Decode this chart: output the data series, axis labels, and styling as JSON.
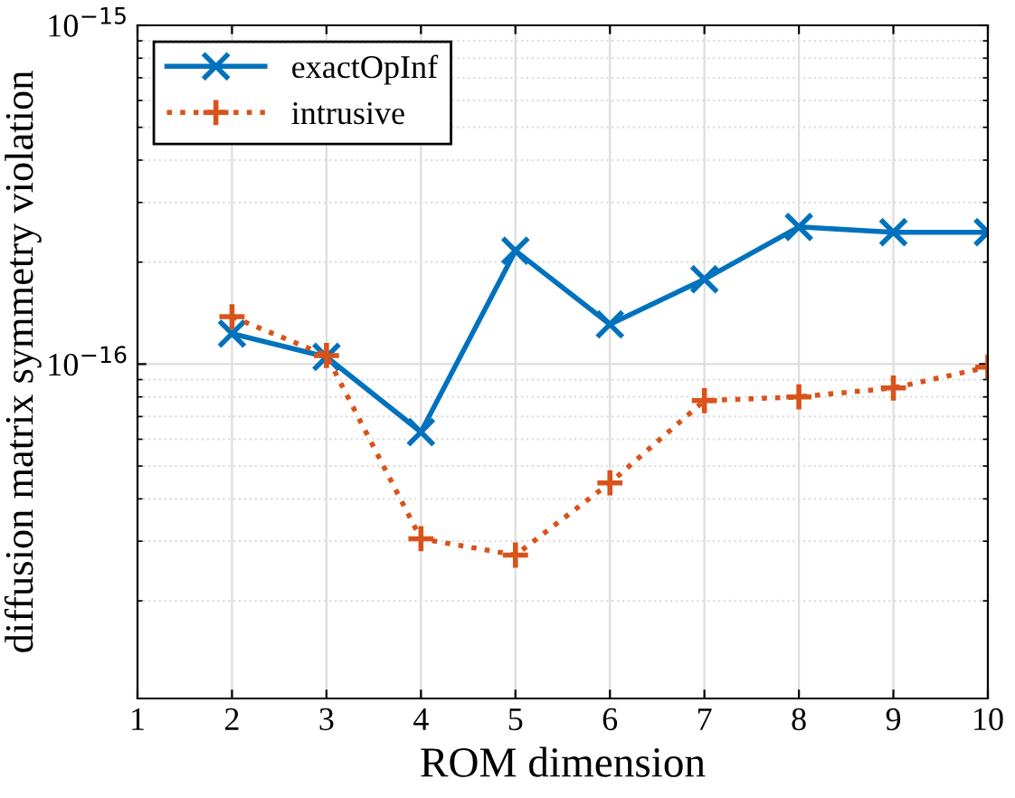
{
  "chart_data": {
    "type": "line",
    "xlabel": "ROM dimension",
    "ylabel": "diffusion matrix symmetry violation",
    "x": [
      2,
      3,
      4,
      5,
      6,
      7,
      8,
      9,
      10
    ],
    "series": [
      {
        "name": "exactOpInf",
        "color": "#0072bd",
        "marker": "cross",
        "line_style": "solid",
        "values": [
          1.23e-16,
          1.05e-16,
          6.3e-17,
          2.16e-16,
          1.31e-16,
          1.78e-16,
          2.54e-16,
          2.45e-16,
          2.45e-16
        ]
      },
      {
        "name": "intrusive",
        "color": "#d95319",
        "marker": "plus",
        "line_style": "dotted",
        "values": [
          1.38e-16,
          1.06e-16,
          3.05e-17,
          2.73e-17,
          4.46e-17,
          7.8e-17,
          8e-17,
          8.5e-17,
          9.8e-17
        ]
      }
    ],
    "xlim": [
      1,
      10
    ],
    "xticks": [
      1,
      2,
      3,
      4,
      5,
      6,
      7,
      8,
      9,
      10
    ],
    "ylim": [
      1.03e-17,
      1e-15
    ],
    "yticks": [
      {
        "value": 1e-16,
        "label": "10$^{−16}$"
      },
      {
        "value": 1e-15,
        "label": "10$^{−15}$"
      }
    ],
    "log": "y",
    "grid": true,
    "legend": "top left"
  }
}
